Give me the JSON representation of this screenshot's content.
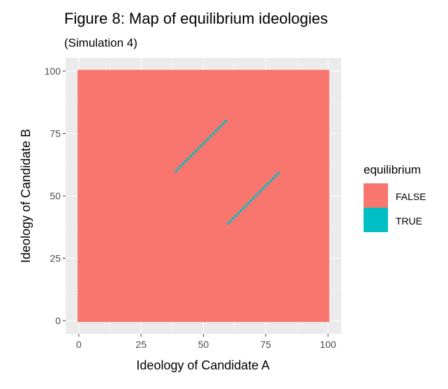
{
  "chart_data": {
    "type": "heatmap",
    "title": "Figure 8: Map of equilibrium ideologies",
    "subtitle": "(Simulation 4)",
    "xlabel": "Ideology of Candidate A",
    "ylabel": "Ideology of Candidate B",
    "xlim": [
      -5.3,
      105.3
    ],
    "ylim": [
      -5.3,
      105.3
    ],
    "x_ticks": [
      0,
      25,
      50,
      75,
      100
    ],
    "y_ticks": [
      0,
      25,
      50,
      75,
      100
    ],
    "grid_step": 1,
    "grid_range": [
      0,
      100
    ],
    "default_value": "FALSE",
    "true_segments": [
      {
        "a_from": 39,
        "a_to": 59,
        "b_offset": 21
      },
      {
        "a_from": 60,
        "a_to": 80,
        "b_offset": -21
      }
    ],
    "legend": {
      "title": "equilibrium",
      "placement": "right",
      "entries": [
        {
          "label": "FALSE",
          "color": "#F8766D"
        },
        {
          "label": "TRUE",
          "color": "#00BFC4"
        }
      ]
    }
  }
}
